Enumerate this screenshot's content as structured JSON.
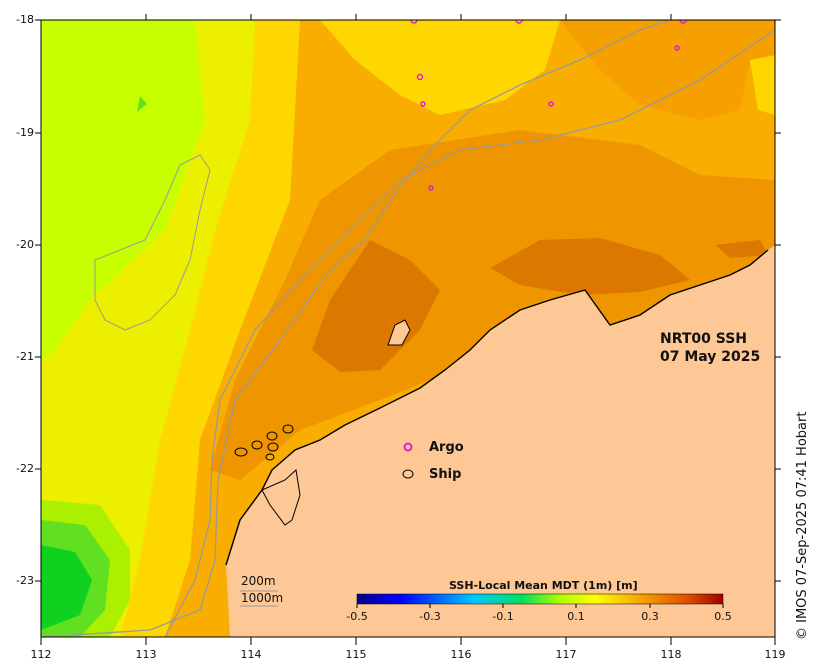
{
  "map": {
    "product_title": "NRT00 SSH",
    "date": "07 May 2025",
    "lon_labels": [
      "112",
      "113",
      "114",
      "115",
      "116",
      "117",
      "118",
      "119"
    ],
    "lat_labels": [
      "-18",
      "-19",
      "-20",
      "-21",
      "-22",
      "-23"
    ],
    "legend": {
      "argo_label": "Argo",
      "ship_label": "Ship"
    },
    "isobaths": {
      "shallow": "200m",
      "deep": "1000m"
    },
    "colorbar": {
      "title": "SSH-Local Mean MDT (1m) [m]",
      "min": -0.5,
      "max": 0.5,
      "tick_labels": [
        "-0.5",
        "-0.3",
        "-0.1",
        "0.1",
        "0.3",
        "0.5"
      ]
    },
    "credit": "© IMOS 07-Sep-2025 07:41 Hobart",
    "colors": {
      "land": "#fdc896",
      "argo_marker": "#e020c0",
      "ship_marker": "#000000",
      "isobath_line": "#9a9a9a"
    }
  }
}
